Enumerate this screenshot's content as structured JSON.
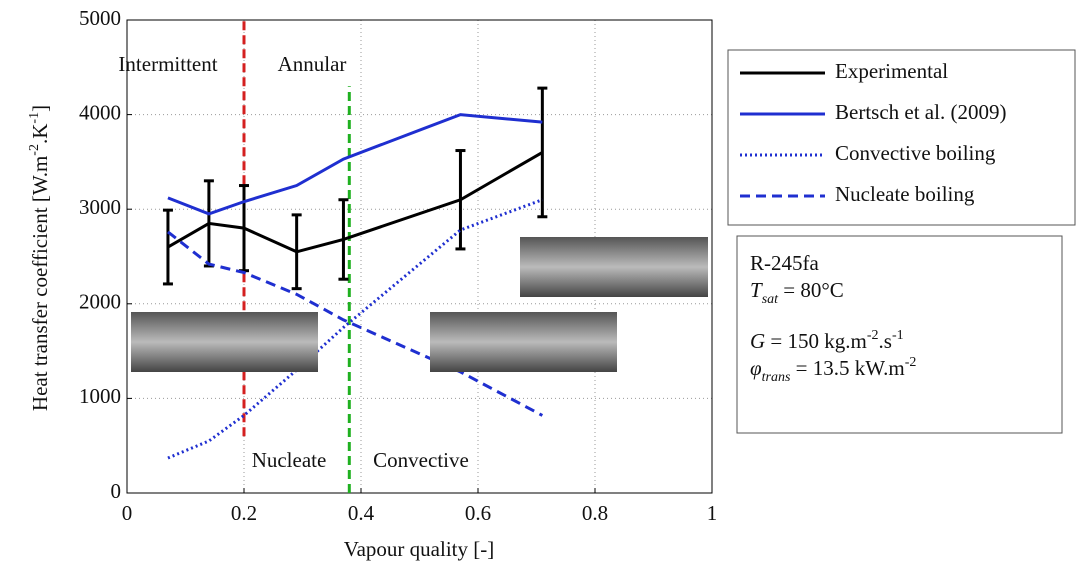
{
  "chart_data": {
    "type": "line",
    "xlabel": "Vapour quality [-]",
    "ylabel": [
      {
        "text": "Heat transfer coefficient [W.m"
      },
      {
        "text": "-2",
        "sup": true
      },
      {
        "text": ".K"
      },
      {
        "text": "-1",
        "sup": true
      },
      {
        "text": "]"
      }
    ],
    "xlim": [
      0,
      1
    ],
    "xticks": [
      0,
      0.2,
      0.4,
      0.6,
      0.8,
      1
    ],
    "ylim": [
      0,
      5000
    ],
    "yticks": [
      0,
      1000,
      2000,
      3000,
      4000,
      5000
    ],
    "grid": true,
    "legend": "right",
    "x": [
      0.07,
      0.14,
      0.2,
      0.29,
      0.37,
      0.57,
      0.71
    ],
    "series": [
      {
        "name": "Experimental",
        "color": "#000000",
        "dash": "solid",
        "values": [
          2600,
          2850,
          2800,
          2550,
          2680,
          3100,
          3600
        ],
        "errors": [
          390,
          450,
          450,
          390,
          420,
          520,
          680
        ]
      },
      {
        "name": "Bertsch et al. (2009)",
        "color": "#1f2fd0",
        "dash": "solid",
        "values": [
          3120,
          2950,
          3080,
          3250,
          3530,
          4000,
          3920
        ]
      },
      {
        "name": "Convective boiling",
        "color": "#1f2fd0",
        "dash": "dotted",
        "values": [
          370,
          550,
          820,
          1300,
          1750,
          2780,
          3100
        ]
      },
      {
        "name": "Nucleate boiling",
        "color": "#1f2fd0",
        "dash": "dashed",
        "values": [
          2760,
          2420,
          2330,
          2100,
          1830,
          1280,
          820
        ]
      }
    ],
    "vlines": [
      {
        "x": 0.2,
        "color": "#d42020"
      },
      {
        "x": 0.38,
        "color": "#1fb020"
      }
    ],
    "annotations": [
      {
        "text": "Intermittent",
        "color": "#d42020"
      },
      {
        "text": "Annular",
        "color": "#d42020"
      },
      {
        "text": "Nucleate",
        "color": "#1fb020"
      },
      {
        "text": "Convective",
        "color": "#1fb020"
      }
    ],
    "info": [
      [
        {
          "text": "R-245fa"
        }
      ],
      [
        {
          "text": "T",
          "italic": true
        },
        {
          "text": "sat",
          "sub": true,
          "italic": true
        },
        {
          "text": " = 80°C"
        }
      ],
      [
        {
          "text": "G",
          "italic": true
        },
        {
          "text": " = 150 kg.m"
        },
        {
          "text": "-2",
          "sup": true
        },
        {
          "text": ".s"
        },
        {
          "text": "-1",
          "sup": true
        }
      ],
      [
        {
          "text": "φ",
          "italic": true
        },
        {
          "text": "trans",
          "sub": true,
          "italic": true
        },
        {
          "text": " = 13.5 kW.m"
        },
        {
          "text": "-2",
          "sup": true
        }
      ]
    ]
  }
}
